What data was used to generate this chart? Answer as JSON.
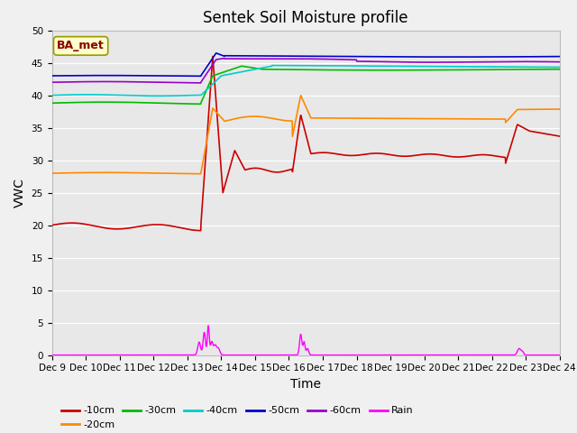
{
  "title": "Sentek Soil Moisture profile",
  "xlabel": "Time",
  "ylabel": "VWC",
  "annotation": "BA_met",
  "ylim": [
    0,
    50
  ],
  "xlim": [
    0,
    15
  ],
  "fig_bg": "#f0f0f0",
  "plot_bg": "#e8e8e8",
  "grid_color": "#ffffff",
  "tick_labels": [
    "Dec 9",
    "Dec 10",
    "Dec 11",
    "Dec 12",
    "Dec 13",
    "Dec 14",
    "Dec 15",
    "Dec 16",
    "Dec 17",
    "Dec 18",
    "Dec 19",
    "Dec 20",
    "Dec 21",
    "Dec 22",
    "Dec 23",
    "Dec 24"
  ],
  "series": {
    "-10cm": {
      "color": "#cc0000",
      "lw": 1.2
    },
    "-20cm": {
      "color": "#ff8800",
      "lw": 1.2
    },
    "-30cm": {
      "color": "#00bb00",
      "lw": 1.2
    },
    "-40cm": {
      "color": "#00cccc",
      "lw": 1.2
    },
    "-50cm": {
      "color": "#0000cc",
      "lw": 1.2
    },
    "-60cm": {
      "color": "#9900cc",
      "lw": 1.2
    },
    "Rain": {
      "color": "#ff00ff",
      "lw": 1.0
    }
  },
  "title_fontsize": 12,
  "axis_label_fontsize": 10,
  "tick_fontsize": 7.5,
  "legend_fontsize": 8,
  "annot_fontsize": 9
}
